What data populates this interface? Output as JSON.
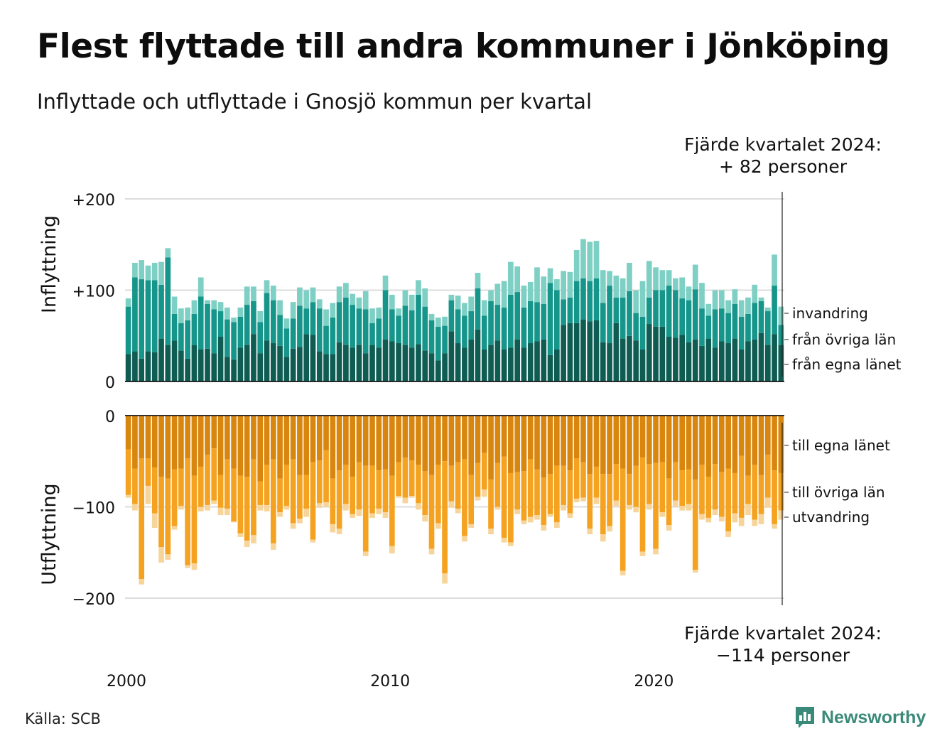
{
  "title": "Flest flyttade till andra kommuner i Jönköping",
  "subtitle": "Inflyttade och utflyttade i Gnosjö kommun per kvartal",
  "annotation_top": {
    "line1": "Fjärde kvartalet 2024:",
    "line2": "+ 82 personer"
  },
  "annotation_bottom": {
    "line1": "Fjärde kvartalet 2024:",
    "line2": "−114 personer"
  },
  "source": "Källa: SCB",
  "brand": "Newsworthy",
  "colors": {
    "in_egna": "#0f5c53",
    "in_ovriga": "#16968a",
    "in_invandring": "#7ecfc4",
    "out_egna": "#d9860f",
    "out_ovriga": "#f4a21f",
    "out_utvandring": "#f7d49a",
    "grid": "#dddddd",
    "axis": "#111111",
    "brand": "#3a8a79"
  },
  "chart_data": {
    "type": "bar",
    "stacked": true,
    "x_start": "2000-Q1",
    "x_end": "2024-Q4",
    "x_ticks": [
      "2000",
      "2010",
      "2020"
    ],
    "grid": true,
    "panels": [
      {
        "ylabel": "Inflyttning",
        "y_ticks": [
          "+200",
          "+100",
          "0"
        ],
        "y_tick_values": [
          200,
          100,
          0
        ],
        "ylim": [
          0,
          200
        ],
        "series": [
          {
            "name": "från egna länet",
            "values": [
              30,
              33,
              25,
              33,
              32,
              47,
              40,
              45,
              34,
              25,
              40,
              35,
              36,
              31,
              49,
              27,
              24,
              37,
              40,
              52,
              31,
              45,
              42,
              39,
              27,
              36,
              38,
              52,
              51,
              33,
              30,
              30,
              43,
              40,
              37,
              40,
              31,
              40,
              37,
              46,
              44,
              42,
              40,
              37,
              41,
              34,
              31,
              23,
              31,
              55,
              42,
              37,
              46,
              57,
              35,
              40,
              45,
              35,
              37,
              46,
              37,
              42,
              44,
              46,
              29,
              35,
              62,
              64,
              64,
              68,
              66,
              67,
              43,
              42,
              64,
              47,
              50,
              45,
              35,
              63,
              60,
              60,
              49,
              48,
              51,
              43,
              46,
              39,
              47,
              37,
              44,
              42,
              47,
              35,
              44,
              46,
              53,
              40,
              52,
              40
            ],
            "values_note": ""
          },
          {
            "name": "från övriga län",
            "values": [
              52,
              81,
              87,
              78,
              79,
              59,
              96,
              29,
              30,
              42,
              34,
              58,
              49,
              48,
              28,
              41,
              41,
              34,
              44,
              36,
              34,
              52,
              47,
              34,
              31,
              33,
              45,
              28,
              36,
              47,
              31,
              40,
              44,
              52,
              47,
              40,
              48,
              24,
              32,
              54,
              35,
              30,
              43,
              41,
              54,
              48,
              36,
              37,
              30,
              34,
              37,
              35,
              31,
              45,
              37,
              48,
              39,
              46,
              58,
              52,
              44,
              46,
              43,
              39,
              79,
              65,
              28,
              28,
              46,
              45,
              44,
              46,
              43,
              63,
              28,
              45,
              49,
              30,
              36,
              29,
              40,
              40,
              56,
              52,
              40,
              46,
              55,
              41,
              25,
              42,
              36,
              33,
              38,
              36,
              30,
              40,
              35,
              37,
              53,
              22
            ],
            "values_note": ""
          },
          {
            "name": "invandring",
            "values": [
              9,
              16,
              21,
              16,
              19,
              25,
              10,
              19,
              16,
              14,
              15,
              21,
              4,
              10,
              10,
              13,
              5,
              10,
              20,
              16,
              12,
              14,
              16,
              16,
              11,
              18,
              20,
              20,
              16,
              10,
              18,
              16,
              17,
              16,
              12,
              12,
              20,
              16,
              12,
              16,
              16,
              8,
              17,
              17,
              16,
              20,
              7,
              10,
              10,
              6,
              15,
              14,
              16,
              17,
              17,
              12,
              23,
              29,
              36,
              28,
              24,
              21,
              38,
              30,
              16,
              12,
              31,
              28,
              34,
              43,
              43,
              41,
              36,
              16,
              24,
              21,
              31,
              25,
              39,
              40,
              25,
              22,
              17,
              13,
              23,
              15,
              27,
              28,
              13,
              21,
              20,
              14,
              16,
              18,
              18,
              20,
              4,
              4,
              34,
              20
            ]
          }
        ]
      },
      {
        "ylabel": "Utflyttning",
        "y_ticks": [
          "0",
          "−100",
          "−200"
        ],
        "y_tick_values": [
          0,
          -100,
          -200
        ],
        "ylim": [
          -210,
          0
        ],
        "series": [
          {
            "name": "till egna länet",
            "values": [
              -37,
              -58,
              -47,
              -47,
              -57,
              -67,
              -69,
              -59,
              -58,
              -47,
              -66,
              -56,
              -43,
              -36,
              -65,
              -48,
              -58,
              -66,
              -67,
              -48,
              -72,
              -54,
              -48,
              -69,
              -54,
              -48,
              -65,
              -65,
              -51,
              -49,
              -38,
              -69,
              -60,
              -54,
              -67,
              -51,
              -55,
              -55,
              -60,
              -59,
              -66,
              -51,
              -46,
              -49,
              -54,
              -61,
              -65,
              -54,
              -50,
              -55,
              -51,
              -48,
              -65,
              -52,
              -41,
              -70,
              -52,
              -45,
              -63,
              -62,
              -61,
              -48,
              -59,
              -68,
              -64,
              -55,
              -55,
              -60,
              -47,
              -51,
              -64,
              -56,
              -64,
              -64,
              -53,
              -58,
              -64,
              -55,
              -46,
              -53,
              -52,
              -51,
              -69,
              -51,
              -60,
              -59,
              -70,
              -54,
              -67,
              -53,
              -62,
              -58,
              -63,
              -44,
              -66,
              -54,
              -65,
              -43,
              -60,
              -63
            ]
          },
          {
            "name": "till övriga län",
            "values": [
              -50,
              -39,
              -132,
              -30,
              -50,
              -77,
              -83,
              -62,
              -41,
              -117,
              -96,
              -44,
              -55,
              -57,
              -36,
              -54,
              -58,
              -63,
              -70,
              -83,
              -26,
              -44,
              -92,
              -37,
              -45,
              -70,
              -48,
              -37,
              -85,
              -47,
              -57,
              -50,
              -64,
              -43,
              -41,
              -52,
              -94,
              -52,
              -42,
              -47,
              -77,
              -37,
              -44,
              -39,
              -42,
              -48,
              -81,
              -64,
              -123,
              -39,
              -51,
              -84,
              -54,
              -37,
              -40,
              -54,
              -48,
              -89,
              -76,
              -41,
              -54,
              -63,
              -50,
              -52,
              -44,
              -62,
              -43,
              -47,
              -44,
              -39,
              -60,
              -34,
              -66,
              -57,
              -40,
              -112,
              -34,
              -45,
              -103,
              -44,
              -94,
              -55,
              -51,
              -42,
              -39,
              -38,
              -99,
              -54,
              -45,
              -50,
              -49,
              -69,
              -44,
              -68,
              -31,
              -60,
              -43,
              -47,
              -59,
              -41
            ]
          },
          {
            "name": "utvandring",
            "values": [
              -3,
              -7,
              -6,
              -20,
              -16,
              -17,
              -6,
              -4,
              -4,
              -3,
              -7,
              -5,
              -6,
              -4,
              -8,
              -7,
              -1,
              -4,
              -7,
              -9,
              -6,
              -7,
              -7,
              -5,
              -4,
              -6,
              -5,
              -9,
              -3,
              -5,
              -5,
              -9,
              -6,
              -7,
              -4,
              -7,
              -5,
              -5,
              -6,
              -6,
              -8,
              -2,
              -6,
              -2,
              -7,
              -7,
              -6,
              -6,
              -11,
              -7,
              -5,
              -6,
              -4,
              -4,
              -8,
              -6,
              -3,
              -5,
              -4,
              -5,
              -4,
              -6,
              -5,
              -6,
              -3,
              -6,
              -6,
              -5,
              -4,
              -4,
              -6,
              -7,
              -8,
              -6,
              -6,
              -5,
              -5,
              -6,
              -5,
              -6,
              -6,
              -5,
              -6,
              -7,
              -5,
              -7,
              -3,
              -6,
              -5,
              -6,
              -5,
              -6,
              -10,
              -9,
              -12,
              -7,
              -11,
              -11,
              -5,
              -10
            ]
          }
        ]
      }
    ]
  }
}
